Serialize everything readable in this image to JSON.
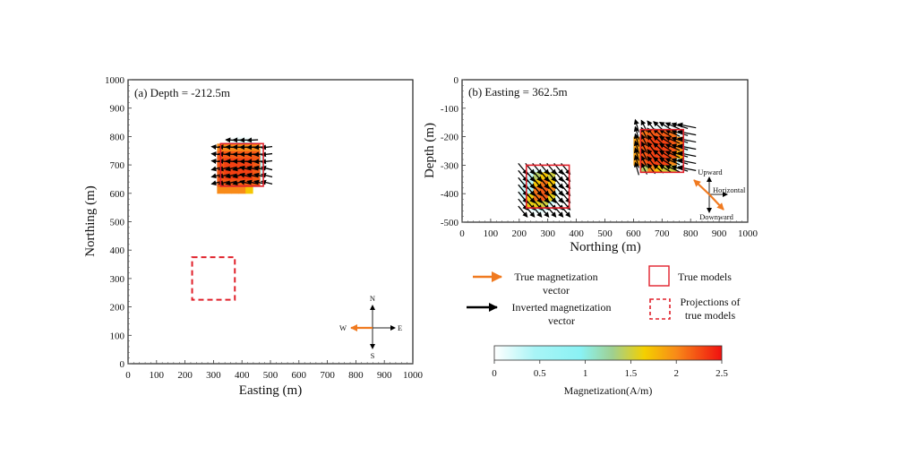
{
  "chart_data": [
    {
      "id": "a",
      "type": "heatmap",
      "title": "(a) Depth = -212.5m",
      "xlabel": "Easting (m)",
      "ylabel": "Northing (m)",
      "xlim": [
        0,
        1000
      ],
      "ylim": [
        0,
        1000
      ],
      "xticks": [
        0,
        100,
        200,
        300,
        400,
        500,
        600,
        700,
        800,
        900,
        1000
      ],
      "yticks": [
        0,
        100,
        200,
        300,
        400,
        500,
        600,
        700,
        800,
        900,
        1000
      ],
      "true_model": {
        "x": [
          325,
          475
        ],
        "y": [
          625,
          775
        ]
      },
      "projection_model": {
        "x": [
          225,
          375
        ],
        "y": [
          225,
          375
        ]
      },
      "anomaly_cells": [
        {
          "x": 325,
          "y": 612.5,
          "v": 2.0
        },
        {
          "x": 350,
          "y": 612.5,
          "v": 2.0
        },
        {
          "x": 375,
          "y": 612.5,
          "v": 2.0
        },
        {
          "x": 400,
          "y": 612.5,
          "v": 2.0
        },
        {
          "x": 425,
          "y": 612.5,
          "v": 1.7
        },
        {
          "x": 325,
          "y": 637.5,
          "v": 2.2
        },
        {
          "x": 350,
          "y": 637.5,
          "v": 2.2
        },
        {
          "x": 375,
          "y": 637.5,
          "v": 2.2
        },
        {
          "x": 400,
          "y": 637.5,
          "v": 2.2
        },
        {
          "x": 425,
          "y": 637.5,
          "v": 2.2
        },
        {
          "x": 450,
          "y": 637.5,
          "v": 2.2
        },
        {
          "x": 325,
          "y": 662.5,
          "v": 2.2
        },
        {
          "x": 350,
          "y": 662.5,
          "v": 2.3
        },
        {
          "x": 375,
          "y": 662.5,
          "v": 2.3
        },
        {
          "x": 400,
          "y": 662.5,
          "v": 2.3
        },
        {
          "x": 425,
          "y": 662.5,
          "v": 2.3
        },
        {
          "x": 450,
          "y": 662.5,
          "v": 2.2
        },
        {
          "x": 325,
          "y": 687.5,
          "v": 2.2
        },
        {
          "x": 350,
          "y": 687.5,
          "v": 2.3
        },
        {
          "x": 375,
          "y": 687.5,
          "v": 2.3
        },
        {
          "x": 400,
          "y": 687.5,
          "v": 2.3
        },
        {
          "x": 425,
          "y": 687.5,
          "v": 2.3
        },
        {
          "x": 450,
          "y": 687.5,
          "v": 2.2
        },
        {
          "x": 325,
          "y": 712.5,
          "v": 2.2
        },
        {
          "x": 350,
          "y": 712.5,
          "v": 2.3
        },
        {
          "x": 375,
          "y": 712.5,
          "v": 2.3
        },
        {
          "x": 400,
          "y": 712.5,
          "v": 2.3
        },
        {
          "x": 425,
          "y": 712.5,
          "v": 2.3
        },
        {
          "x": 450,
          "y": 712.5,
          "v": 2.2
        },
        {
          "x": 325,
          "y": 737.5,
          "v": 2.2
        },
        {
          "x": 350,
          "y": 737.5,
          "v": 2.2
        },
        {
          "x": 375,
          "y": 737.5,
          "v": 2.2
        },
        {
          "x": 400,
          "y": 737.5,
          "v": 2.2
        },
        {
          "x": 425,
          "y": 737.5,
          "v": 2.2
        },
        {
          "x": 450,
          "y": 737.5,
          "v": 2.2
        },
        {
          "x": 325,
          "y": 762.5,
          "v": 2.0
        },
        {
          "x": 350,
          "y": 762.5,
          "v": 2.0
        },
        {
          "x": 375,
          "y": 762.5,
          "v": 2.0
        },
        {
          "x": 400,
          "y": 762.5,
          "v": 2.0
        },
        {
          "x": 425,
          "y": 762.5,
          "v": 2.0
        },
        {
          "x": 450,
          "y": 762.5,
          "v": 2.0
        }
      ],
      "halo": {
        "x": [
          300,
          500
        ],
        "y": [
          590,
          810
        ],
        "v": 0.8
      },
      "compass": {
        "labels": [
          "N",
          "S",
          "E",
          "W"
        ],
        "true_vector_direction": "W"
      }
    },
    {
      "id": "b",
      "type": "heatmap",
      "title": "(b) Easting = 362.5m",
      "xlabel": "Northing (m)",
      "ylabel": "Depth (m)",
      "xlim": [
        0,
        1000
      ],
      "ylim": [
        -500,
        0
      ],
      "xticks": [
        0,
        100,
        200,
        300,
        400,
        500,
        600,
        700,
        800,
        900,
        1000
      ],
      "yticks": [
        0,
        -100,
        -200,
        -300,
        -400,
        -500
      ],
      "true_models": [
        {
          "x": [
            225,
            375
          ],
          "y": [
            -450,
            -300
          ]
        },
        {
          "x": [
            625,
            775
          ],
          "y": [
            -325,
            -175
          ]
        }
      ],
      "anomaly_cells": [
        {
          "x": 237.5,
          "y": -412.5,
          "v": 1.6
        },
        {
          "x": 237.5,
          "y": -437.5,
          "v": 1.6
        },
        {
          "x": 262.5,
          "y": -337.5,
          "v": 1.4
        },
        {
          "x": 262.5,
          "y": -362.5,
          "v": 1.7
        },
        {
          "x": 262.5,
          "y": -387.5,
          "v": 2.1
        },
        {
          "x": 262.5,
          "y": -412.5,
          "v": 2.1
        },
        {
          "x": 262.5,
          "y": -437.5,
          "v": 1.6
        },
        {
          "x": 287.5,
          "y": -337.5,
          "v": 1.7
        },
        {
          "x": 287.5,
          "y": -362.5,
          "v": 2.1
        },
        {
          "x": 287.5,
          "y": -387.5,
          "v": 2.2
        },
        {
          "x": 287.5,
          "y": -412.5,
          "v": 2.2
        },
        {
          "x": 287.5,
          "y": -437.5,
          "v": 1.5
        },
        {
          "x": 312.5,
          "y": -337.5,
          "v": 1.5
        },
        {
          "x": 312.5,
          "y": -362.5,
          "v": 1.7
        },
        {
          "x": 312.5,
          "y": -387.5,
          "v": 2.0
        },
        {
          "x": 312.5,
          "y": -412.5,
          "v": 1.6
        },
        {
          "x": 612.5,
          "y": -212.5,
          "v": 1.9
        },
        {
          "x": 612.5,
          "y": -237.5,
          "v": 1.9
        },
        {
          "x": 612.5,
          "y": -262.5,
          "v": 1.9
        },
        {
          "x": 612.5,
          "y": -287.5,
          "v": 1.9
        },
        {
          "x": 637.5,
          "y": -187.5,
          "v": 2.1
        },
        {
          "x": 637.5,
          "y": -212.5,
          "v": 2.2
        },
        {
          "x": 637.5,
          "y": -237.5,
          "v": 2.2
        },
        {
          "x": 637.5,
          "y": -262.5,
          "v": 2.2
        },
        {
          "x": 637.5,
          "y": -287.5,
          "v": 2.2
        },
        {
          "x": 637.5,
          "y": -312.5,
          "v": 1.4
        },
        {
          "x": 662.5,
          "y": -187.5,
          "v": 2.2
        },
        {
          "x": 662.5,
          "y": -212.5,
          "v": 2.3
        },
        {
          "x": 662.5,
          "y": -237.5,
          "v": 2.3
        },
        {
          "x": 662.5,
          "y": -262.5,
          "v": 2.3
        },
        {
          "x": 662.5,
          "y": -287.5,
          "v": 2.3
        },
        {
          "x": 662.5,
          "y": -312.5,
          "v": 2.0
        },
        {
          "x": 687.5,
          "y": -187.5,
          "v": 2.2
        },
        {
          "x": 687.5,
          "y": -212.5,
          "v": 2.3
        },
        {
          "x": 687.5,
          "y": -237.5,
          "v": 2.3
        },
        {
          "x": 687.5,
          "y": -262.5,
          "v": 2.3
        },
        {
          "x": 687.5,
          "y": -287.5,
          "v": 2.3
        },
        {
          "x": 687.5,
          "y": -312.5,
          "v": 1.7
        },
        {
          "x": 712.5,
          "y": -187.5,
          "v": 2.2
        },
        {
          "x": 712.5,
          "y": -212.5,
          "v": 2.3
        },
        {
          "x": 712.5,
          "y": -237.5,
          "v": 2.3
        },
        {
          "x": 712.5,
          "y": -262.5,
          "v": 2.3
        },
        {
          "x": 712.5,
          "y": -287.5,
          "v": 2.3
        },
        {
          "x": 712.5,
          "y": -312.5,
          "v": 1.5
        },
        {
          "x": 737.5,
          "y": -187.5,
          "v": 2.1
        },
        {
          "x": 737.5,
          "y": -212.5,
          "v": 2.2
        },
        {
          "x": 737.5,
          "y": -237.5,
          "v": 2.2
        },
        {
          "x": 737.5,
          "y": -262.5,
          "v": 2.2
        },
        {
          "x": 737.5,
          "y": -287.5,
          "v": 2.0
        },
        {
          "x": 737.5,
          "y": -312.5,
          "v": 1.5
        },
        {
          "x": 762.5,
          "y": -212.5,
          "v": 2.0
        },
        {
          "x": 762.5,
          "y": -237.5,
          "v": 2.0
        },
        {
          "x": 762.5,
          "y": -262.5,
          "v": 1.8
        }
      ],
      "halos": [
        {
          "x": [
            190,
            350
          ],
          "y": [
            -480,
            -300
          ],
          "v": 0.8
        },
        {
          "x": [
            580,
            810
          ],
          "y": [
            -340,
            -150
          ],
          "v": 0.8
        }
      ],
      "compass": {
        "labels": [
          "Upward",
          "Horizontal",
          "Downward"
        ]
      }
    }
  ],
  "legend": {
    "true_vector": "True magnetization vector",
    "true_vector_lines": [
      "True magnetization",
      "vector"
    ],
    "inverted_vector_lines": [
      "Inverted magnetization",
      "vector"
    ],
    "true_models": "True models",
    "projections_lines": [
      "Projections of",
      "true models"
    ],
    "true_vector_color": "#f07a20",
    "inverted_vector_color": "#000000",
    "model_box_color": "#e0202a"
  },
  "colorbar": {
    "label": "Magnetization(A/m)",
    "range": [
      0,
      2.5
    ],
    "ticks": [
      0,
      0.5,
      1,
      1.5,
      2,
      2.5
    ],
    "tick_labels": [
      "0",
      "0.5",
      "1",
      "1.5",
      "2",
      "2.5"
    ],
    "stops": [
      {
        "v": 0.0,
        "color": "#ffffff"
      },
      {
        "v": 0.45,
        "color": "#a8f4f6"
      },
      {
        "v": 0.95,
        "color": "#8af2f4"
      },
      {
        "v": 1.3,
        "color": "#9fd090"
      },
      {
        "v": 1.65,
        "color": "#f4d000"
      },
      {
        "v": 2.0,
        "color": "#f88a18"
      },
      {
        "v": 2.5,
        "color": "#f01010"
      }
    ]
  }
}
